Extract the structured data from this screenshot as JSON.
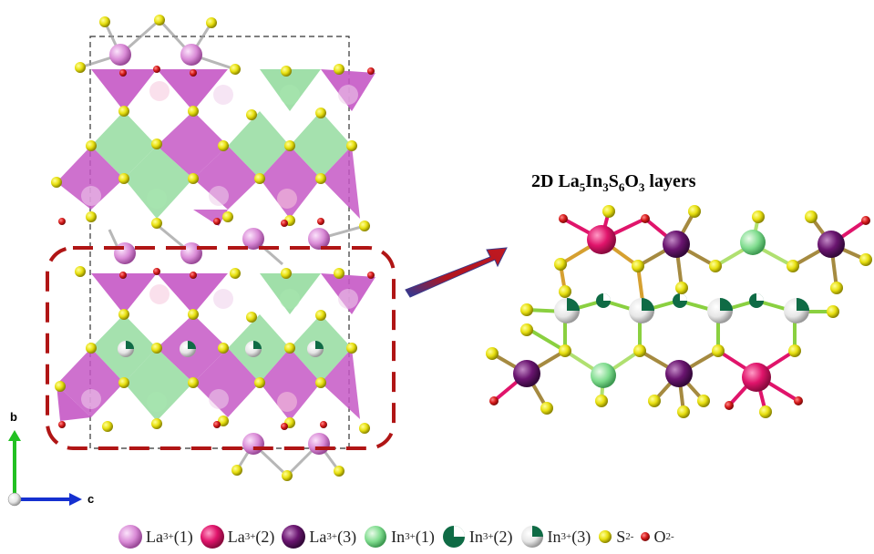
{
  "title": {
    "prefix": "2D La",
    "sub1": "5",
    "mid1": "In",
    "sub2": "3",
    "mid2": "S",
    "sub3": "6",
    "mid3": "O",
    "sub4": "3",
    "suffix": " layers"
  },
  "axes": {
    "b": "b",
    "c": "c"
  },
  "legend": [
    {
      "name": "La",
      "charge": "3+",
      "site": "(1)",
      "color": "#d98ad6",
      "icon": "la1-sphere-icon"
    },
    {
      "name": "La",
      "charge": "3+",
      "site": "(2)",
      "color": "#e0146b",
      "icon": "la2-sphere-icon"
    },
    {
      "name": "La",
      "charge": "3+",
      "site": "(3)",
      "color": "#6a1570",
      "icon": "la3-sphere-icon"
    },
    {
      "name": "In",
      "charge": "3+",
      "site": "(1)",
      "color": "#7fdc8e",
      "icon": "in1-sphere-icon"
    },
    {
      "name": "In",
      "charge": "3+",
      "site": "(2)",
      "color": "#0f6b45",
      "icon": "in2-sphere-icon"
    },
    {
      "name": "In",
      "charge": "3+",
      "site": "(3)",
      "color": "#e6e6e6",
      "icon": "in3-sphere-icon"
    },
    {
      "name": "S",
      "charge": "2-",
      "site": "",
      "color": "#e8e010",
      "icon": "s-sphere-icon"
    },
    {
      "name": "O",
      "charge": "2-",
      "site": "",
      "color": "#d61a1a",
      "icon": "o-sphere-icon"
    }
  ],
  "colors": {
    "la_polyhedra": "#c558c5",
    "in_polyhedra": "#8fd99a",
    "highlight_box": "#b01515",
    "arrow": "#a01820",
    "unit_cell": "#333333",
    "axis_b": "#22c022",
    "axis_c": "#1530d0"
  }
}
